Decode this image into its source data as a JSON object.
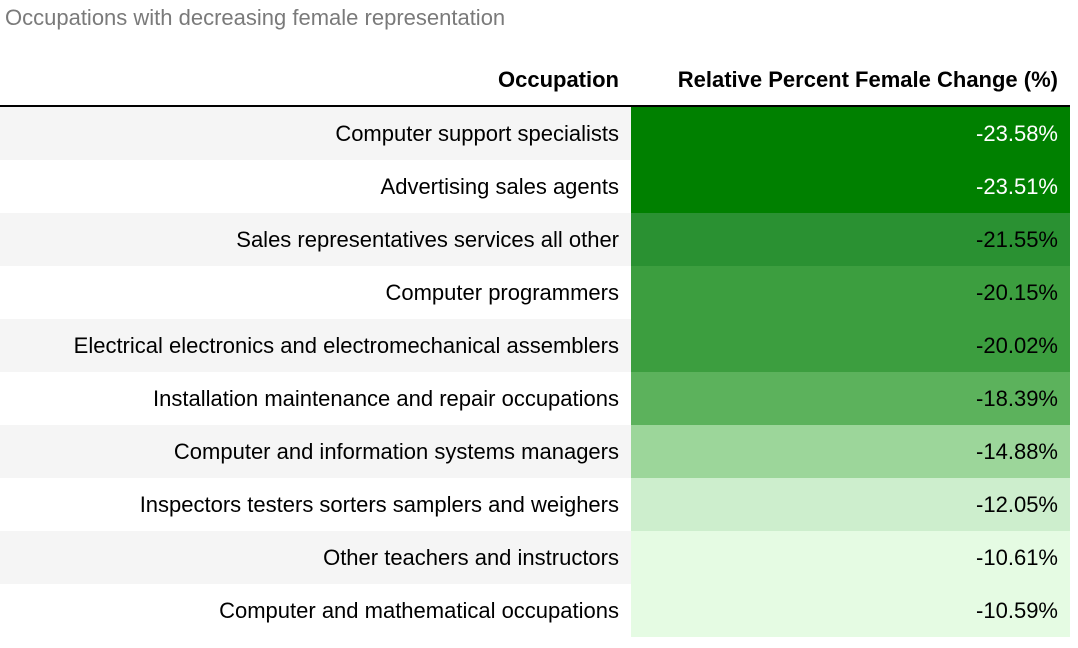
{
  "chart_data": {
    "type": "table",
    "title": "Occupations with decreasing female representation",
    "columns": [
      "Occupation",
      "Relative Percent Female Change (%)"
    ],
    "rows": [
      {
        "occupation": "Computer support specialists",
        "value": -23.58,
        "label": "-23.58%",
        "color": "#008000",
        "text_color": "#ffffff"
      },
      {
        "occupation": "Advertising sales agents",
        "value": -23.51,
        "label": "-23.51%",
        "color": "#008000",
        "text_color": "#ffffff"
      },
      {
        "occupation": "Sales representatives services all other",
        "value": -21.55,
        "label": "-21.55%",
        "color": "#2a9132",
        "text_color": "#000000"
      },
      {
        "occupation": "Computer programmers",
        "value": -20.15,
        "label": "-20.15%",
        "color": "#3c9e3f",
        "text_color": "#000000"
      },
      {
        "occupation": "Electrical electronics and electromechanical assemblers",
        "value": -20.02,
        "label": "-20.02%",
        "color": "#3c9e3f",
        "text_color": "#000000"
      },
      {
        "occupation": "Installation maintenance and repair occupations",
        "value": -18.39,
        "label": "-18.39%",
        "color": "#5cb25c",
        "text_color": "#000000"
      },
      {
        "occupation": "Computer and information systems managers",
        "value": -14.88,
        "label": "-14.88%",
        "color": "#9cd69a",
        "text_color": "#000000"
      },
      {
        "occupation": "Inspectors testers sorters samplers and weighers",
        "value": -12.05,
        "label": "-12.05%",
        "color": "#cdeecd",
        "text_color": "#000000"
      },
      {
        "occupation": "Other teachers and instructors",
        "value": -10.61,
        "label": "-10.61%",
        "color": "#e5fbe3",
        "text_color": "#000000"
      },
      {
        "occupation": "Computer and mathematical occupations",
        "value": -10.59,
        "label": "-10.59%",
        "color": "#e5fbe3",
        "text_color": "#000000"
      }
    ]
  }
}
